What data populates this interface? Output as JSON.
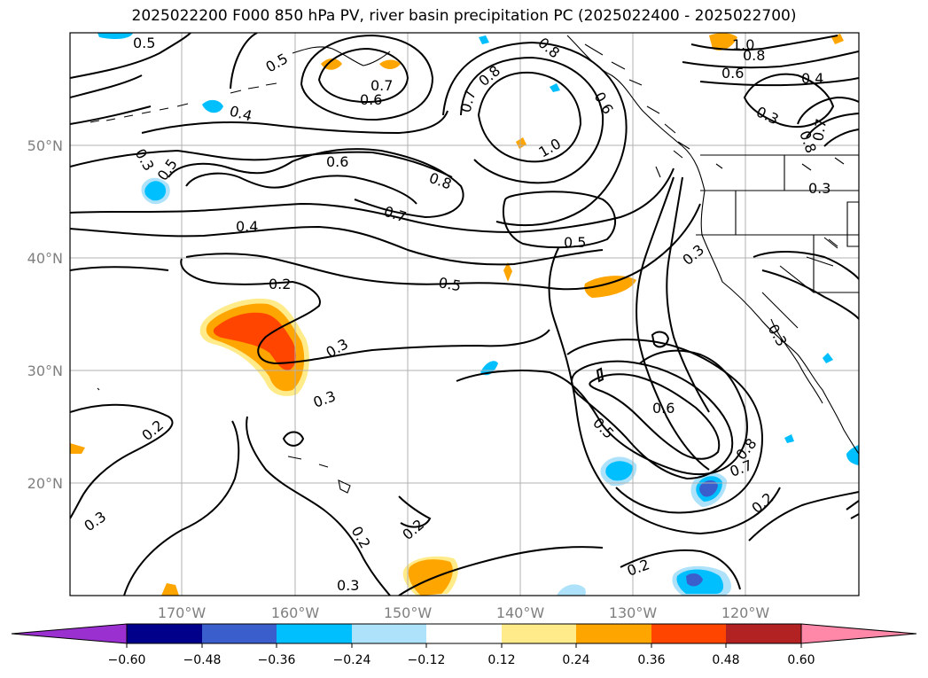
{
  "title": "2025022200 F000 850 hPa PV, river basin precipitation PC (2025022400 - 2025022700)",
  "map": {
    "projection": "latitude-longitude",
    "extent": {
      "lon": [
        -180,
        -110
      ],
      "lat": [
        10,
        60
      ]
    },
    "gridlines": true,
    "lat_labels": [
      "50°N",
      "40°N",
      "30°N",
      "20°N"
    ],
    "lon_labels": [
      "170°W",
      "160°W",
      "150°W",
      "140°W",
      "130°W",
      "120°W"
    ]
  },
  "contour_labels": [
    "0.5",
    "0.5",
    "0.6",
    "0.7",
    "0.4",
    "0.3",
    "0.5",
    "0.6",
    "0.8",
    "0.7",
    "0.4",
    "0.7",
    "0.8",
    "1.0",
    "0.6",
    "0.8",
    "1.0",
    "0.8",
    "0.6",
    "0.4",
    "0.3",
    "0.8",
    "0.7",
    "0.3",
    "0.5",
    "0.3",
    "0.5",
    "0.2",
    "0.3",
    "0.3",
    "0.2",
    "0.6",
    "0.5",
    "0.7",
    "0.8",
    "0.2",
    "0.3",
    "0.3",
    "0.2",
    "0.2",
    "0.3",
    "0.2"
  ],
  "colorbar": {
    "ticks": [
      "−0.60",
      "−0.48",
      "−0.36",
      "−0.24",
      "−0.12",
      "0.12",
      "0.24",
      "0.36",
      "0.48",
      "0.60"
    ],
    "colors": [
      "#9b30d0",
      "#00008b",
      "#3a5fcd",
      "#00bfff",
      "#aee2fa",
      "#ffffff",
      "#ffeb8a",
      "#ffa500",
      "#ff4500",
      "#b22222",
      "#ff88a8"
    ]
  }
}
